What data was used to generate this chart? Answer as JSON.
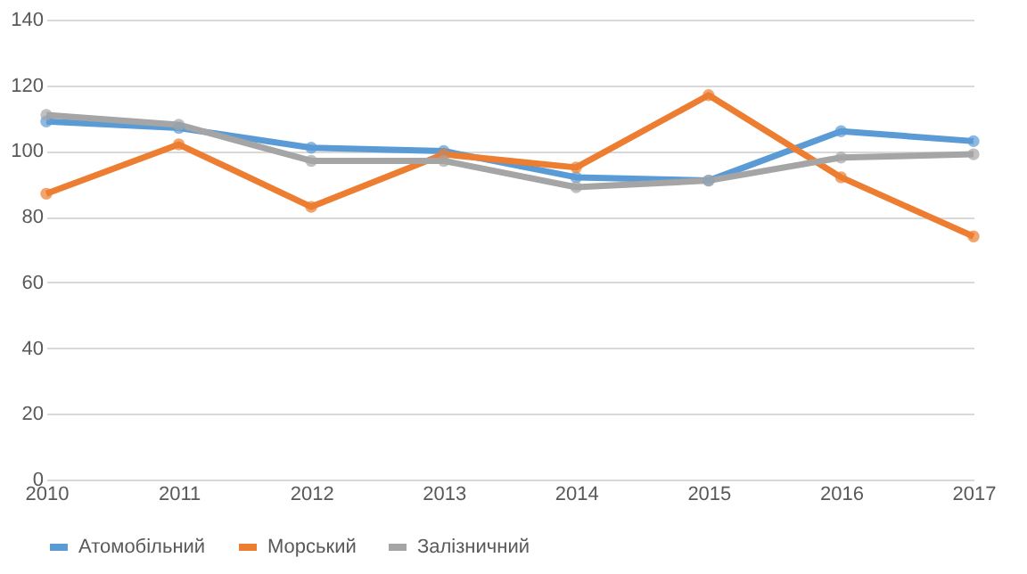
{
  "chart_data": {
    "type": "line",
    "categories": [
      "2010",
      "2011",
      "2012",
      "2013",
      "2014",
      "2015",
      "2016",
      "2017"
    ],
    "series": [
      {
        "name": "Атомобільний",
        "color": "#5b9bd5",
        "values": [
          109,
          107,
          101,
          100,
          92,
          91,
          106,
          103
        ]
      },
      {
        "name": "Морський",
        "color": "#ed7d31",
        "values": [
          87,
          102,
          83,
          99,
          95,
          117,
          92,
          74
        ]
      },
      {
        "name": "Залізничний",
        "color": "#a5a5a5",
        "values": [
          111,
          108,
          97,
          97,
          89,
          91,
          98,
          99
        ]
      }
    ],
    "ylim": [
      0,
      140
    ],
    "yticks": [
      0,
      20,
      40,
      60,
      80,
      100,
      120,
      140
    ],
    "grid": "y",
    "legend": "bottom",
    "marker": "circle",
    "line_style": "solid"
  }
}
